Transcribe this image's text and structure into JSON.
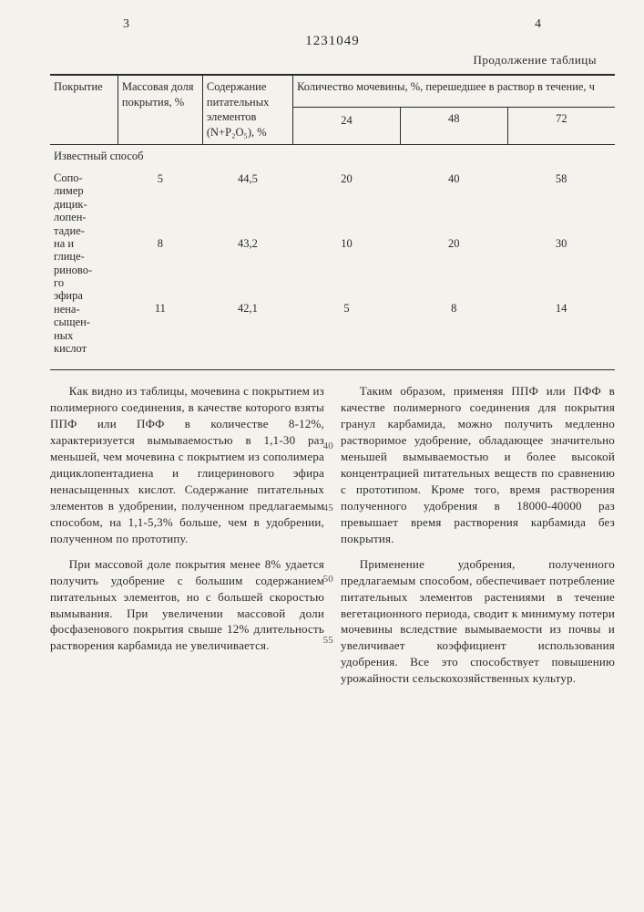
{
  "doc": {
    "page_left": "3",
    "doc_number": "1231049",
    "page_right": "4",
    "table_continuation": "Продолжение таблицы"
  },
  "table": {
    "headers": {
      "col1": "Покрытие",
      "col2": "Массовая доля покрытия, %",
      "col3": "Содержание питательных элементов (N+P₂O₅), %",
      "col4_group": "Количество мочевины, %, перешедшее в раствор в течение, ч",
      "sub24": "24",
      "sub48": "48",
      "sub72": "72"
    },
    "known_method": "Известный способ",
    "first_col_words": "Сополимер дициклопентадиена и глицеринового эфира ненасыщенных кислот",
    "rows": [
      {
        "c2": "5",
        "c3": "44,5",
        "c4": "20",
        "c5": "40",
        "c6": "58"
      },
      {
        "c2": "8",
        "c3": "43,2",
        "c4": "10",
        "c5": "20",
        "c6": "30"
      },
      {
        "c2": "11",
        "c3": "42,1",
        "c4": "5",
        "c5": "8",
        "c6": "14"
      }
    ]
  },
  "body": {
    "left": {
      "p1": "Как видно из таблицы, мочевина с покрытием из полимерного соединения, в качестве которого взяты ППФ или ПФФ в количестве 8-12%, характеризуется вымываемостью в 1,1-30 раз меньшей, чем мочевина с покрытием из сополимера дициклопентадиена и глицеринового эфира ненасыщенных кислот. Содержание питательных элементов в удобрении, полученном предлагаемым способом, на 1,1-5,3% больше, чем в удобрении, полученном по прототипу.",
      "p2": "При массовой доле покрытия менее 8% удается получить удобрение с большим содержанием питательных элементов, но с большей скоростью вымывания. При увеличении массовой доли фосфазенового покрытия свыше 12% длительность растворения карбамида не увеличивается."
    },
    "right": {
      "p1": "Таким образом, применяя ППФ или ПФФ в качестве полимерного соединения для покрытия гранул карбамида, можно получить медленно растворимое удобрение, обладающее значительно меньшей вымываемостью и более высокой концентрацией питательных веществ по сравнению с прототипом. Кроме того, время растворения полученного удобрения в 18000-40000 раз превышает время растворения карбамида без покрытия.",
      "p2": "Применение удобрения, полученного предлагаемым способом, обеспечивает потребление питательных элементов растениями в течение вегетационного периода, сводит к минимуму потери мочевины вследствие вымываемости из почвы и увеличивает коэффициент использования удобрения. Все это способствует повышению урожайности сельскохозяйственных культур."
    },
    "line_numbers": {
      "a": "40",
      "b": "45",
      "c": "50",
      "d": "55"
    }
  }
}
